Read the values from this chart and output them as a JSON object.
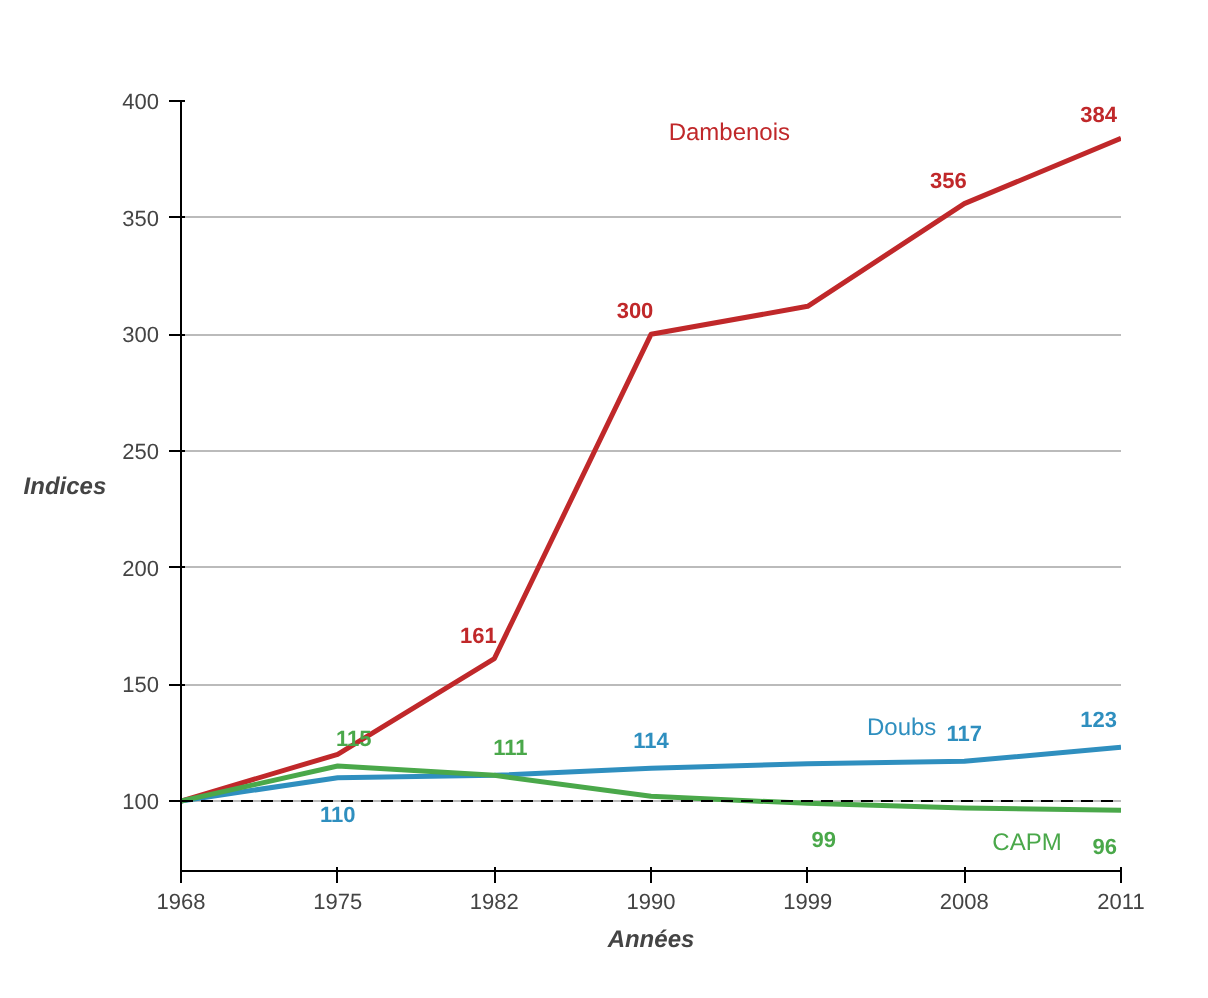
{
  "chart_data": {
    "type": "line",
    "xlabel": "Années",
    "ylabel": "Indices",
    "categories": [
      "1968",
      "1975",
      "1982",
      "1990",
      "1999",
      "2008",
      "2011"
    ],
    "ylim": [
      70,
      400
    ],
    "yticks": [
      100,
      150,
      200,
      250,
      300,
      350,
      400
    ],
    "grid": "y",
    "marker": "none",
    "line_style": "solid",
    "ref_lines": [
      {
        "axis": "y",
        "value": 100,
        "line_style": "dashed",
        "color": "#000000"
      }
    ],
    "series": [
      {
        "name": "Dambenois",
        "color": "#c0282a",
        "values": [
          100,
          120,
          161,
          300,
          312,
          356,
          384
        ],
        "value_labels": [
          null,
          null,
          "161",
          "300",
          null,
          "356",
          "384"
        ]
      },
      {
        "name": "Doubs",
        "color": "#2f8fbf",
        "values": [
          100,
          110,
          111,
          114,
          116,
          117,
          123
        ],
        "value_labels": [
          null,
          "110",
          null,
          "114",
          null,
          "117",
          "123"
        ]
      },
      {
        "name": "CAPM",
        "color": "#4aa84a",
        "values": [
          100,
          115,
          111,
          102,
          99,
          97,
          96
        ],
        "value_labels": [
          null,
          "115",
          "111",
          null,
          "99",
          null,
          "96"
        ]
      }
    ]
  }
}
